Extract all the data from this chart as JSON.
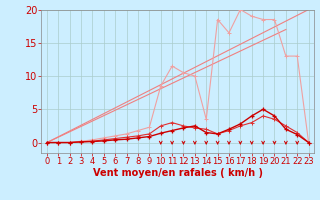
{
  "background_color": "#cceeff",
  "grid_color": "#aacccc",
  "xlim": [
    -0.5,
    23.5
  ],
  "ylim": [
    -1.5,
    20
  ],
  "yticks": [
    0,
    5,
    10,
    15,
    20
  ],
  "xticks": [
    0,
    1,
    2,
    3,
    4,
    5,
    6,
    7,
    8,
    9,
    10,
    11,
    12,
    13,
    14,
    15,
    16,
    17,
    18,
    19,
    20,
    21,
    22,
    23
  ],
  "xlabel": "Vent moyen/en rafales ( km/h )",
  "xlabel_color": "#cc0000",
  "xlabel_fontsize": 7,
  "tick_color": "#cc0000",
  "tick_fontsize": 6,
  "ytick_color": "#cc0000",
  "ytick_fontsize": 7,
  "line1_color": "#f0a0a0",
  "line1_x": [
    0,
    1,
    2,
    3,
    4,
    5,
    6,
    7,
    8,
    9,
    10,
    11,
    12,
    13,
    14,
    15,
    16,
    17,
    18,
    19,
    20,
    21,
    22,
    23
  ],
  "line1_y": [
    0,
    0,
    0,
    0.2,
    0.4,
    0.7,
    1.0,
    1.3,
    1.8,
    2.3,
    8.5,
    11.5,
    10.5,
    10.0,
    3.5,
    18.5,
    16.5,
    20.0,
    19.0,
    18.5,
    18.5,
    13.0,
    13.0,
    0
  ],
  "line2_color": "#f08080",
  "line2_x": [
    0,
    23
  ],
  "line2_y": [
    0,
    20
  ],
  "line3_color": "#f08080",
  "line3_x": [
    0,
    21
  ],
  "line3_y": [
    0,
    17
  ],
  "line4_color": "#e03030",
  "line4_x": [
    0,
    1,
    2,
    3,
    4,
    5,
    6,
    7,
    8,
    9,
    10,
    11,
    12,
    13,
    14,
    15,
    16,
    17,
    18,
    19,
    20,
    21,
    22,
    23
  ],
  "line4_y": [
    0,
    0,
    0,
    0.1,
    0.2,
    0.4,
    0.6,
    0.8,
    1.0,
    1.3,
    2.5,
    3.0,
    2.5,
    2.2,
    2.0,
    1.3,
    1.8,
    2.5,
    3.0,
    4.0,
    3.5,
    2.5,
    1.5,
    0
  ],
  "line5_color": "#cc0000",
  "line5_x": [
    0,
    1,
    2,
    3,
    4,
    5,
    6,
    7,
    8,
    9,
    10,
    11,
    12,
    13,
    14,
    15,
    16,
    17,
    18,
    19,
    20,
    21,
    22,
    23
  ],
  "line5_y": [
    0,
    0,
    0,
    0.1,
    0.15,
    0.25,
    0.4,
    0.5,
    0.7,
    0.9,
    1.4,
    1.8,
    2.2,
    2.5,
    1.5,
    1.3,
    2.0,
    2.8,
    4.0,
    5.0,
    4.0,
    2.0,
    1.2,
    0
  ],
  "arrows_x": [
    10,
    11,
    12,
    13,
    14,
    15,
    16,
    17,
    18,
    19,
    20,
    21,
    22
  ],
  "arrow_color": "#cc0000"
}
